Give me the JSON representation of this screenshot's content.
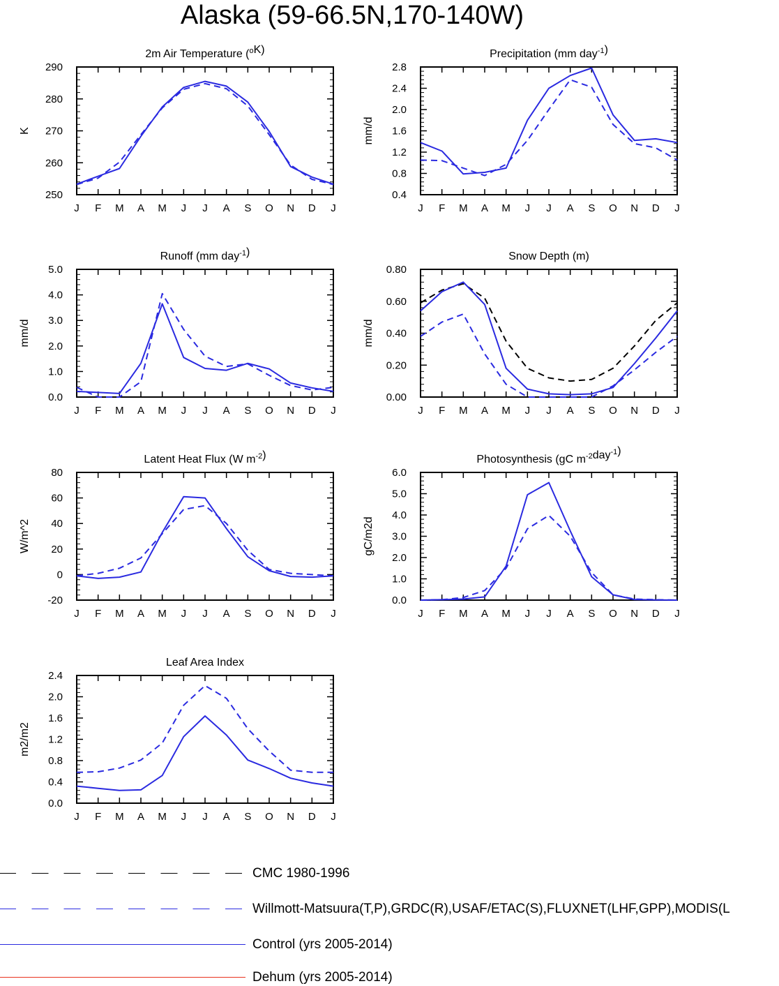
{
  "title": "Alaska (59-66.5N,170-140W)",
  "month_labels": [
    "J",
    "F",
    "M",
    "A",
    "M",
    "J",
    "J",
    "A",
    "S",
    "O",
    "N",
    "D",
    "J"
  ],
  "colors": {
    "obs": "#2a2ae0",
    "control": "#2a2ae0",
    "cmc": "#000000",
    "dehum": "#e8321e",
    "axis": "#000000"
  },
  "legend": [
    {
      "label": "CMC 1980-1996",
      "style": "dashed",
      "color": "#000000"
    },
    {
      "label": "Willmott-Matsuura(T,P),GRDC(R),USAF/ETAC(S),FLUXNET(LHF,GPP),MODIS(L",
      "style": "dashed",
      "color": "#2a2ae0"
    },
    {
      "label": "Control (yrs 2005-2014)",
      "style": "solid",
      "color": "#2a2ae0"
    },
    {
      "label": "Dehum (yrs 2005-2014)",
      "style": "solid",
      "color": "#e8321e"
    }
  ],
  "chart_data": [
    {
      "type": "line",
      "title": "2m Air Temperature (°K)",
      "title_parts": [
        [
          "2m Air Temperature (",
          ""
        ],
        [
          "o",
          "sup"
        ],
        [
          "K)",
          ""
        ]
      ],
      "ylabel": "K",
      "ylim": [
        250,
        290
      ],
      "yticks": [
        250,
        260,
        270,
        280,
        290
      ],
      "ytick_labels": [
        "250",
        "260",
        "270",
        "280",
        "290"
      ],
      "series": [
        {
          "name": "Willmott-Matsuura",
          "style": "dashed",
          "color": "#2a2ae0",
          "values": [
            253.2,
            255.2,
            260.2,
            268.8,
            277.2,
            283.0,
            284.8,
            283.2,
            277.8,
            268.8,
            259.3,
            254.8,
            253.2
          ]
        },
        {
          "name": "Control",
          "style": "solid",
          "color": "#2a2ae0",
          "values": [
            253.3,
            255.8,
            258.2,
            268.3,
            277.5,
            283.6,
            285.5,
            284.0,
            279.0,
            269.8,
            258.8,
            255.5,
            253.3
          ]
        }
      ]
    },
    {
      "type": "line",
      "title": "Precipitation (mm day-1)",
      "title_parts": [
        [
          "Precipitation (mm day",
          ""
        ],
        [
          "-1",
          "sup"
        ],
        [
          ")",
          ""
        ]
      ],
      "ylabel": "mm/d",
      "ylim": [
        0.4,
        2.8
      ],
      "yticks": [
        0.4,
        0.8,
        1.2,
        1.6,
        2.0,
        2.4,
        2.8
      ],
      "ytick_labels": [
        "0.4",
        "0.8",
        "1.2",
        "1.6",
        "2.0",
        "2.4",
        "2.8"
      ],
      "series": [
        {
          "name": "Willmott-Matsuura",
          "style": "dashed",
          "color": "#2a2ae0",
          "values": [
            1.05,
            1.04,
            0.9,
            0.76,
            0.97,
            1.42,
            2.0,
            2.56,
            2.42,
            1.72,
            1.36,
            1.28,
            1.05
          ]
        },
        {
          "name": "Control",
          "style": "solid",
          "color": "#2a2ae0",
          "values": [
            1.38,
            1.22,
            0.79,
            0.82,
            0.9,
            1.8,
            2.4,
            2.64,
            2.78,
            1.9,
            1.42,
            1.45,
            1.38
          ]
        }
      ]
    },
    {
      "type": "line",
      "title": "Runoff (mm day-1)",
      "title_parts": [
        [
          "Runoff (mm day",
          ""
        ],
        [
          "-1",
          "sup"
        ],
        [
          ")",
          ""
        ]
      ],
      "ylabel": "mm/d",
      "ylim": [
        0,
        5.0
      ],
      "yticks": [
        0,
        1,
        2,
        3,
        4,
        5
      ],
      "ytick_labels": [
        "0.0",
        "1.0",
        "2.0",
        "3.0",
        "4.0",
        "5.0"
      ],
      "series": [
        {
          "name": "GRDC",
          "style": "dashed",
          "color": "#2a2ae0",
          "values": [
            0.38,
            0.0,
            0.0,
            0.6,
            4.05,
            2.65,
            1.6,
            1.2,
            1.3,
            0.85,
            0.45,
            0.28,
            0.38
          ]
        },
        {
          "name": "Control",
          "style": "solid",
          "color": "#2a2ae0",
          "values": [
            0.22,
            0.18,
            0.14,
            1.32,
            3.65,
            1.55,
            1.12,
            1.05,
            1.32,
            1.1,
            0.55,
            0.36,
            0.22
          ]
        }
      ]
    },
    {
      "type": "line",
      "title": "Snow Depth (m)",
      "title_parts": [
        [
          "Snow Depth (m)",
          ""
        ]
      ],
      "ylabel": "mm/d",
      "ylim": [
        0,
        0.8
      ],
      "yticks": [
        0,
        0.2,
        0.4,
        0.6,
        0.8
      ],
      "ytick_labels": [
        "0.00",
        "0.20",
        "0.40",
        "0.60",
        "0.80"
      ],
      "series": [
        {
          "name": "CMC",
          "style": "dashed",
          "color": "#000000",
          "values": [
            0.59,
            0.67,
            0.71,
            0.62,
            0.35,
            0.18,
            0.12,
            0.1,
            0.11,
            0.18,
            0.32,
            0.48,
            0.59
          ]
        },
        {
          "name": "USAF/ETAC",
          "style": "dashed",
          "color": "#2a2ae0",
          "values": [
            0.38,
            0.47,
            0.52,
            0.27,
            0.08,
            0.0,
            0.0,
            0.0,
            0.0,
            0.07,
            0.17,
            0.28,
            0.38
          ]
        },
        {
          "name": "Control",
          "style": "solid",
          "color": "#2a2ae0",
          "values": [
            0.54,
            0.66,
            0.72,
            0.58,
            0.18,
            0.05,
            0.02,
            0.015,
            0.02,
            0.06,
            0.21,
            0.37,
            0.54
          ]
        }
      ]
    },
    {
      "type": "line",
      "title": "Latent Heat Flux (W m-2)",
      "title_parts": [
        [
          "Latent Heat Flux (W m",
          ""
        ],
        [
          "-2",
          "sup"
        ],
        [
          ")",
          ""
        ]
      ],
      "ylabel": "W/m^2",
      "ylim": [
        -20,
        80
      ],
      "yticks": [
        -20,
        0,
        20,
        40,
        60,
        80
      ],
      "ytick_labels": [
        "-20",
        "0",
        "20",
        "40",
        "60",
        "80"
      ],
      "series": [
        {
          "name": "FLUXNET",
          "style": "dashed",
          "color": "#2a2ae0",
          "values": [
            -1,
            1,
            5,
            13,
            32,
            51,
            54,
            40,
            19,
            4,
            1,
            0,
            -1
          ]
        },
        {
          "name": "Control",
          "style": "solid",
          "color": "#2a2ae0",
          "values": [
            -1,
            -3,
            -2,
            2,
            33,
            61,
            60,
            36,
            14,
            3,
            -1.5,
            -2,
            -1
          ]
        }
      ]
    },
    {
      "type": "line",
      "title": "Photosynthesis (gC m-2day-1)",
      "title_parts": [
        [
          "Photosynthesis (gC m",
          ""
        ],
        [
          "-2",
          "sup"
        ],
        [
          "day",
          ""
        ],
        [
          "-1",
          "sup"
        ],
        [
          ")",
          ""
        ]
      ],
      "ylabel": "gC/m2d",
      "ylim": [
        0,
        6.0
      ],
      "yticks": [
        0,
        1,
        2,
        3,
        4,
        5,
        6
      ],
      "ytick_labels": [
        "0.0",
        "1.0",
        "2.0",
        "3.0",
        "4.0",
        "5.0",
        "6.0"
      ],
      "series": [
        {
          "name": "FLUXNET",
          "style": "dashed",
          "color": "#2a2ae0",
          "values": [
            0.0,
            0.02,
            0.12,
            0.45,
            1.5,
            3.35,
            3.98,
            3.0,
            1.3,
            0.25,
            0.05,
            0.02,
            0.0
          ]
        },
        {
          "name": "Control",
          "style": "solid",
          "color": "#2a2ae0",
          "values": [
            0.0,
            0.02,
            0.05,
            0.15,
            1.6,
            4.95,
            5.52,
            3.25,
            1.1,
            0.25,
            0.03,
            0.01,
            0.0
          ]
        }
      ]
    },
    {
      "type": "line",
      "title": "Leaf Area Index",
      "title_parts": [
        [
          "Leaf Area Index",
          ""
        ]
      ],
      "ylabel": "m2/m2",
      "ylim": [
        0,
        2.4
      ],
      "yticks": [
        0,
        0.4,
        0.8,
        1.2,
        1.6,
        2.0,
        2.4
      ],
      "ytick_labels": [
        "0.0",
        "0.4",
        "0.8",
        "1.2",
        "1.6",
        "2.0",
        "2.4"
      ],
      "series": [
        {
          "name": "MODIS",
          "style": "dashed",
          "color": "#2a2ae0",
          "values": [
            0.58,
            0.59,
            0.66,
            0.81,
            1.13,
            1.84,
            2.21,
            1.97,
            1.4,
            0.98,
            0.62,
            0.58,
            0.58
          ]
        },
        {
          "name": "Control",
          "style": "solid",
          "color": "#2a2ae0",
          "values": [
            0.32,
            0.28,
            0.24,
            0.25,
            0.52,
            1.25,
            1.64,
            1.28,
            0.81,
            0.65,
            0.47,
            0.38,
            0.32
          ]
        }
      ]
    }
  ]
}
